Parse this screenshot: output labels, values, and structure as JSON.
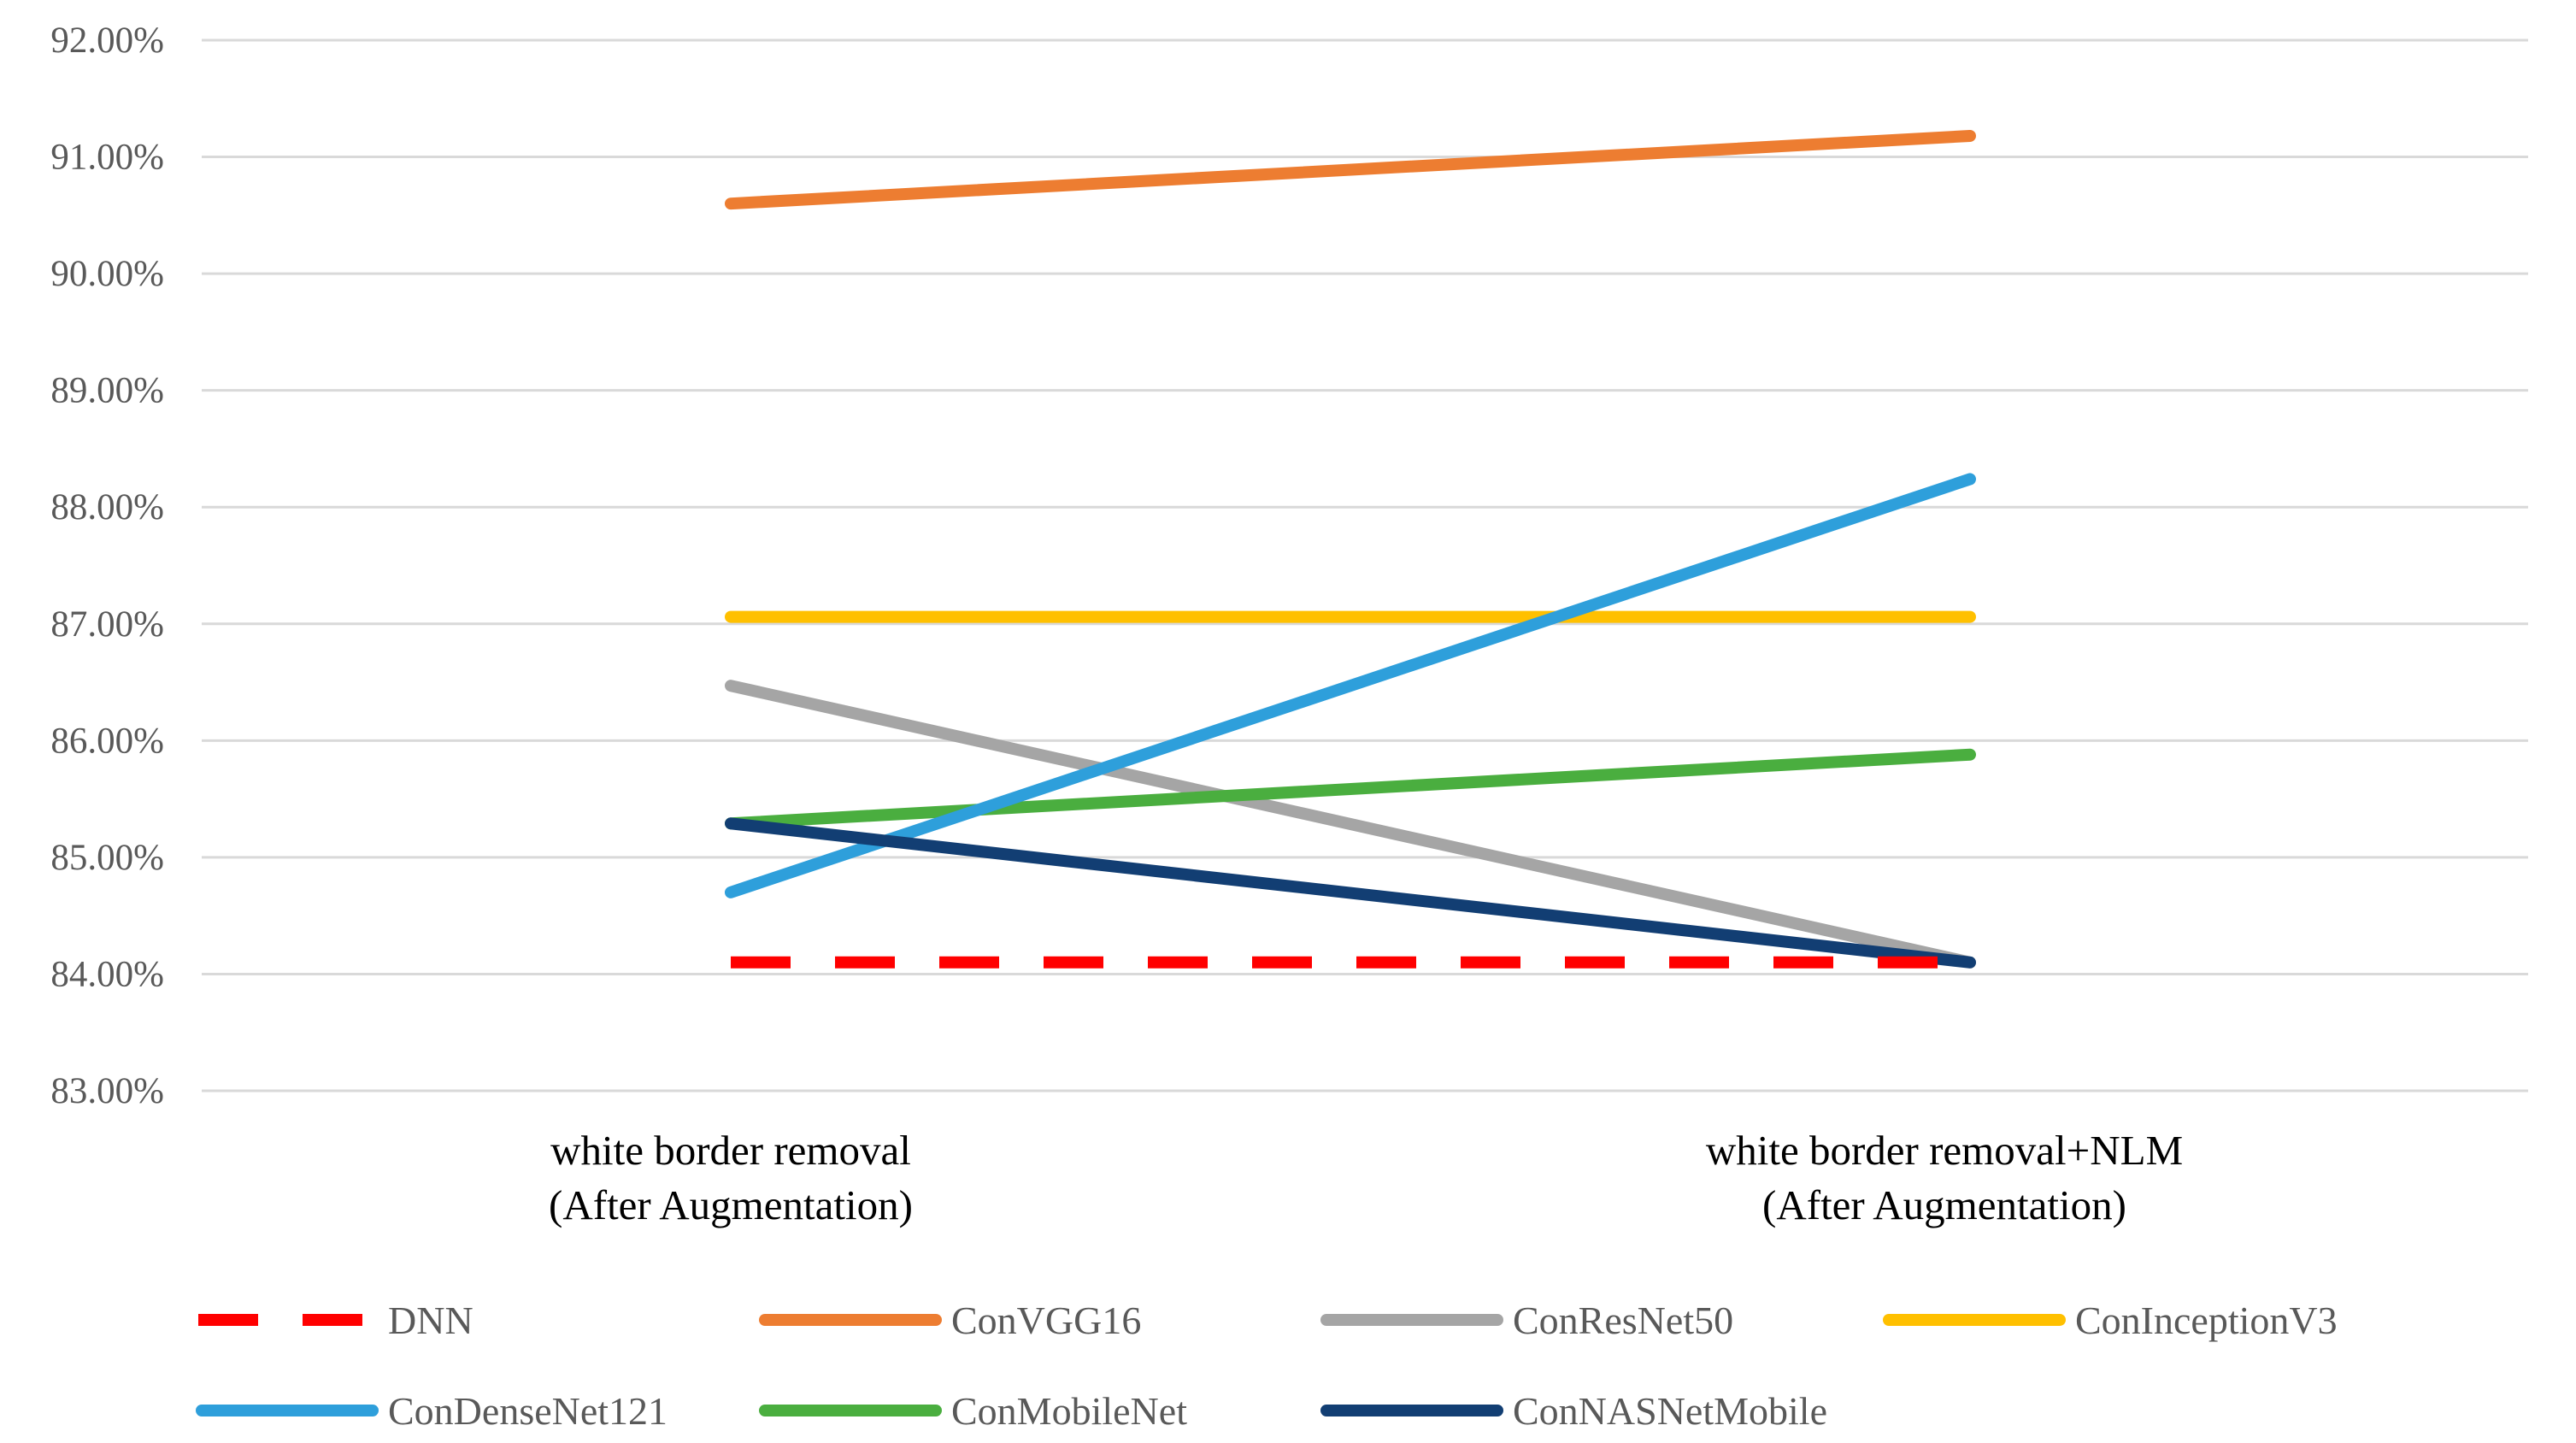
{
  "chart_data": {
    "type": "line",
    "title": "",
    "xlabel": "",
    "ylabel": "",
    "ylim": [
      83,
      92
    ],
    "y_ticks": [
      "83.00%",
      "84.00%",
      "85.00%",
      "86.00%",
      "87.00%",
      "88.00%",
      "89.00%",
      "90.00%",
      "91.00%",
      "92.00%"
    ],
    "categories": [
      [
        "white border removal",
        "(After Augmentation)"
      ],
      [
        "white border removal+NLM",
        "(After Augmentation)"
      ]
    ],
    "series": [
      {
        "name": "DNN",
        "values": [
          84.1,
          84.1
        ],
        "color": "#FF0000",
        "dashed": true
      },
      {
        "name": "ConVGG16",
        "values": [
          90.6,
          91.18
        ],
        "color": "#ED7D31"
      },
      {
        "name": "ConResNet50",
        "values": [
          86.47,
          84.1
        ],
        "color": "#A5A5A5"
      },
      {
        "name": "ConInceptionV3",
        "values": [
          87.06,
          87.06
        ],
        "color": "#FFC000"
      },
      {
        "name": "ConDenseNet121",
        "values": [
          84.7,
          88.24
        ],
        "color": "#2E9FDB"
      },
      {
        "name": "ConMobileNet",
        "values": [
          85.29,
          85.88
        ],
        "color": "#4AAE3F"
      },
      {
        "name": "ConNASNetMobile",
        "values": [
          85.29,
          84.1
        ],
        "color": "#123E73"
      }
    ],
    "grid": true,
    "legend": "bottom"
  }
}
